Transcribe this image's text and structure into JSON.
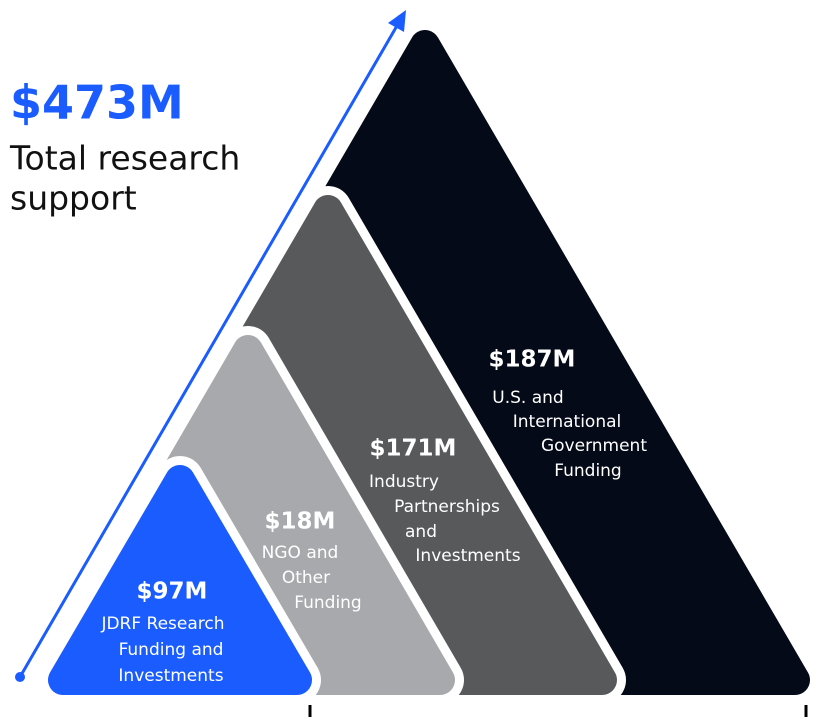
{
  "total": {
    "amount": "$473M",
    "label": [
      "Total research",
      "support"
    ]
  },
  "layers": [
    {
      "amount": "$187M",
      "label": [
        "U.S. and",
        "International",
        "Government",
        "Funding"
      ]
    },
    {
      "amount": "$171M",
      "label": [
        "Industry",
        "Partnerships",
        "and",
        "Investments"
      ]
    },
    {
      "amount": "$18M",
      "label": [
        "NGO and",
        "Other",
        "Funding"
      ]
    },
    {
      "amount": "$97M",
      "label": [
        "JDRF Research",
        "Funding and",
        "Investments"
      ]
    }
  ]
}
